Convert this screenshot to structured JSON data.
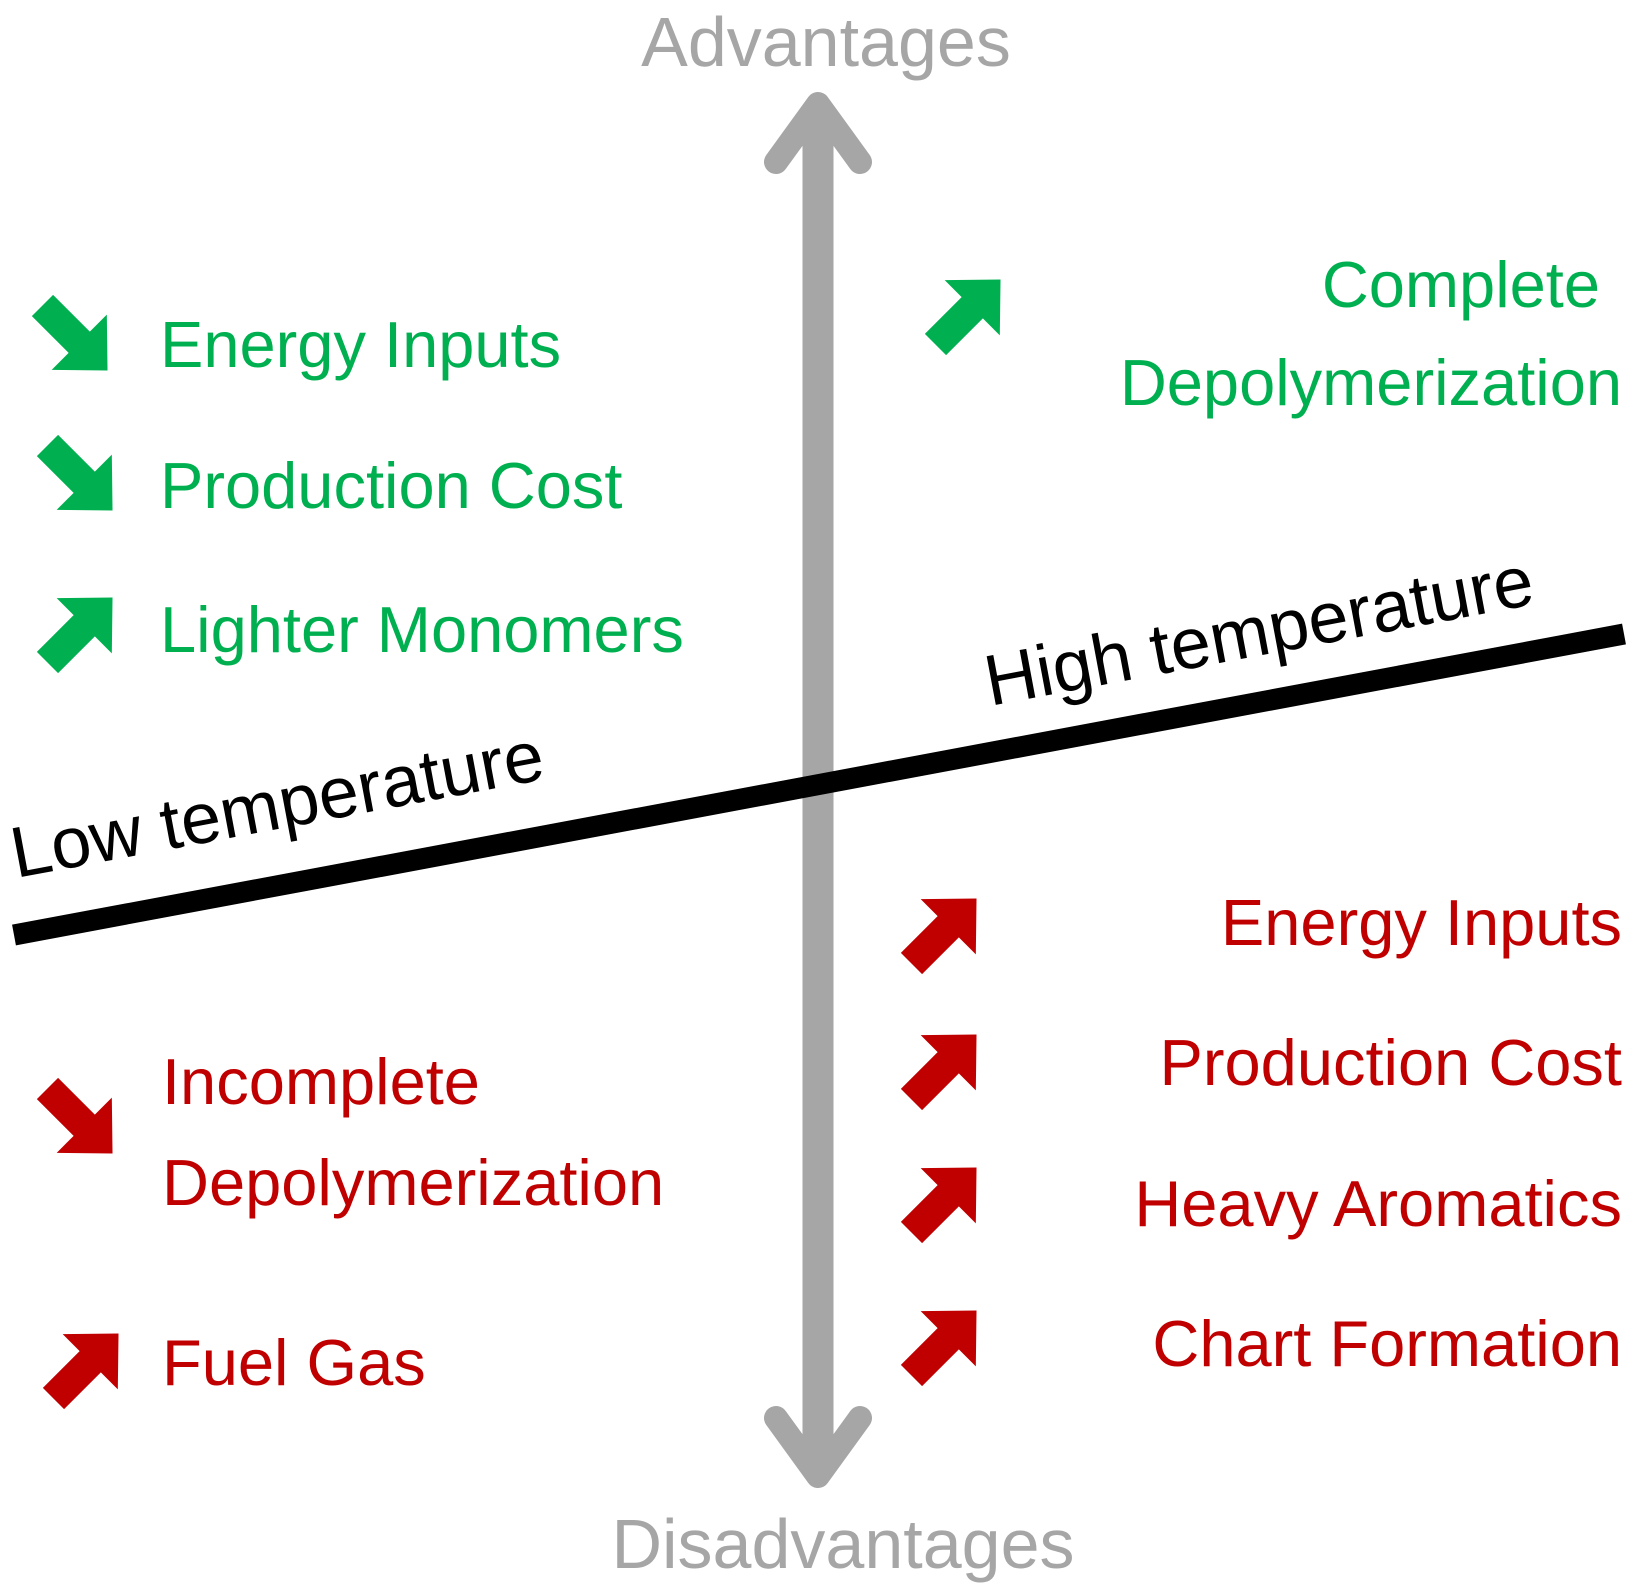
{
  "axis": {
    "top_label": "Advantages",
    "bottom_label": "Disadvantages",
    "low_label": "Low temperature",
    "high_label": "High temperature"
  },
  "low_advantages": [
    {
      "text": "Energy Inputs",
      "direction": "down",
      "icon": "arrow-down-right-icon"
    },
    {
      "text": "Production Cost",
      "direction": "down",
      "icon": "arrow-down-right-icon"
    },
    {
      "text": "Lighter Monomers",
      "direction": "up",
      "icon": "arrow-up-right-icon"
    }
  ],
  "low_disadvantages": [
    {
      "lines": [
        "Incomplete",
        "Depolymerization"
      ],
      "direction": "down",
      "icon": "arrow-down-right-icon"
    },
    {
      "text": "Fuel Gas",
      "direction": "up",
      "icon": "arrow-up-right-icon"
    }
  ],
  "high_advantages": [
    {
      "lines": [
        "Complete",
        "Depolymerization"
      ],
      "direction": "up",
      "icon": "arrow-up-right-icon"
    }
  ],
  "high_disadvantages": [
    {
      "text": "Energy Inputs",
      "direction": "up",
      "icon": "arrow-up-right-icon"
    },
    {
      "text": "Production Cost",
      "direction": "up",
      "icon": "arrow-up-right-icon"
    },
    {
      "text": "Heavy Aromatics",
      "direction": "up",
      "icon": "arrow-up-right-icon"
    },
    {
      "text": "Chart Formation",
      "direction": "up",
      "icon": "arrow-up-right-icon"
    }
  ],
  "colors": {
    "advantage": "#00b050",
    "disadvantage": "#c00000",
    "axis": "#a6a6a6",
    "divider": "#000000"
  }
}
